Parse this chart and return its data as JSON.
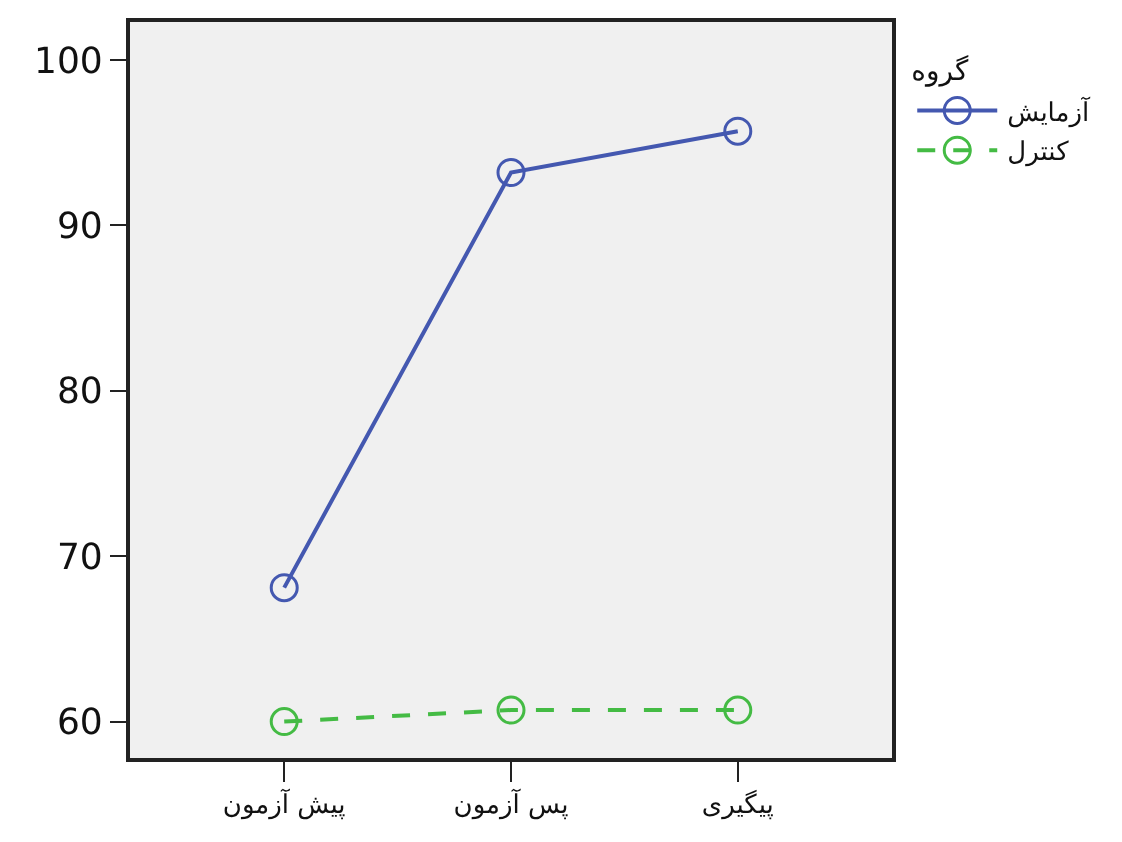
{
  "chart_data": {
    "type": "line",
    "categories": [
      "پیش آزمون",
      "پس آزمون",
      "پیگیری"
    ],
    "series": [
      {
        "name": "آزمایش",
        "color": "#4458b0",
        "values": [
          68.1,
          93.2,
          95.7
        ],
        "line_style": "solid"
      },
      {
        "name": "کنترل",
        "color": "#44bb44",
        "values": [
          60.0,
          60.7,
          60.7
        ],
        "line_style": "dashed"
      }
    ],
    "legend_title": "گروه",
    "legend": "top right",
    "marker": "circle",
    "grid": false,
    "ylim": [
      57.8,
      102.3
    ],
    "yticks": [
      60,
      70,
      80,
      90,
      100
    ]
  }
}
